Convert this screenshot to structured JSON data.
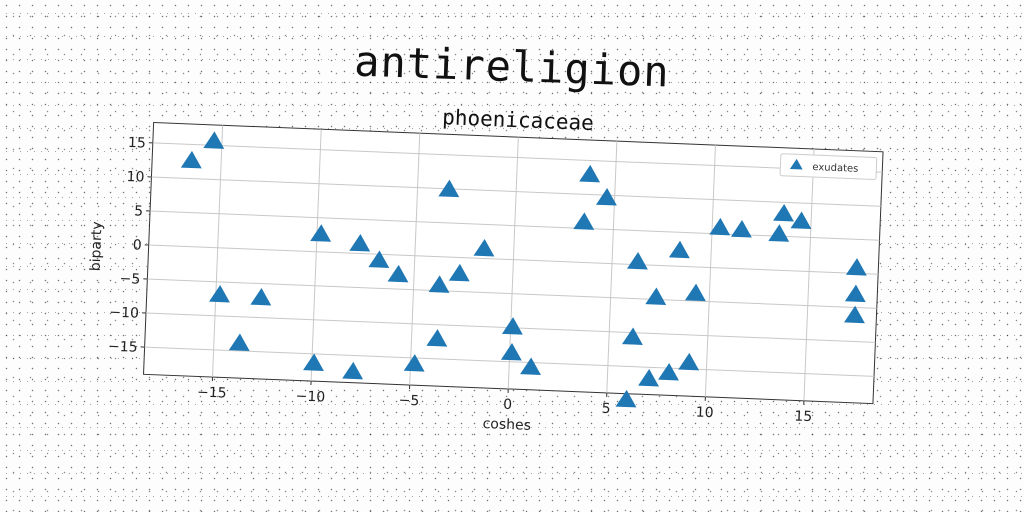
{
  "figure_title": "antireligion",
  "chart_data": {
    "type": "scatter",
    "title": "phoenicaceae",
    "xlabel": "coshes",
    "ylabel": "biparty",
    "xlim": [
      -18.5,
      18.5
    ],
    "ylim": [
      -19,
      18
    ],
    "xticks": [
      -15,
      -10,
      -5,
      0,
      5,
      10,
      15
    ],
    "yticks": [
      -15,
      -10,
      -5,
      0,
      5,
      10,
      15
    ],
    "grid": true,
    "legend_position": "top-right",
    "marker": "triangle",
    "color": "#1f77b4",
    "series": [
      {
        "name": "exudates",
        "points": [
          [
            -16.5,
            12.5
          ],
          [
            -15.4,
            15.5
          ],
          [
            -14.8,
            -7.0
          ],
          [
            -13.7,
            -14.0
          ],
          [
            -12.7,
            -7.2
          ],
          [
            -9.8,
            2.5
          ],
          [
            -9.9,
            -16.5
          ],
          [
            -7.8,
            1.3
          ],
          [
            -7.9,
            -17.5
          ],
          [
            -6.8,
            -1.0
          ],
          [
            -5.8,
            -3.0
          ],
          [
            -4.8,
            -16.0
          ],
          [
            -3.7,
            -12.2
          ],
          [
            -3.7,
            -4.3
          ],
          [
            -3.4,
            9.8
          ],
          [
            -2.7,
            -2.5
          ],
          [
            -1.5,
            1.3
          ],
          [
            0.1,
            -10.0
          ],
          [
            0.1,
            -13.8
          ],
          [
            1.1,
            -15.8
          ],
          [
            3.5,
            5.8
          ],
          [
            3.7,
            12.8
          ],
          [
            4.6,
            9.5
          ],
          [
            6.2,
            -10.8
          ],
          [
            6.3,
            0.3
          ],
          [
            6.0,
            -20.0
          ],
          [
            7.1,
            -16.8
          ],
          [
            7.3,
            -4.8
          ],
          [
            8.1,
            -15.8
          ],
          [
            8.4,
            2.2
          ],
          [
            9.1,
            -14.2
          ],
          [
            9.3,
            -4.0
          ],
          [
            10.4,
            5.8
          ],
          [
            11.5,
            5.6
          ],
          [
            13.4,
            5.2
          ],
          [
            13.6,
            8.2
          ],
          [
            14.5,
            7.2
          ],
          [
            17.4,
            0.7
          ],
          [
            17.4,
            -3.2
          ],
          [
            17.4,
            -6.3
          ]
        ]
      }
    ]
  }
}
